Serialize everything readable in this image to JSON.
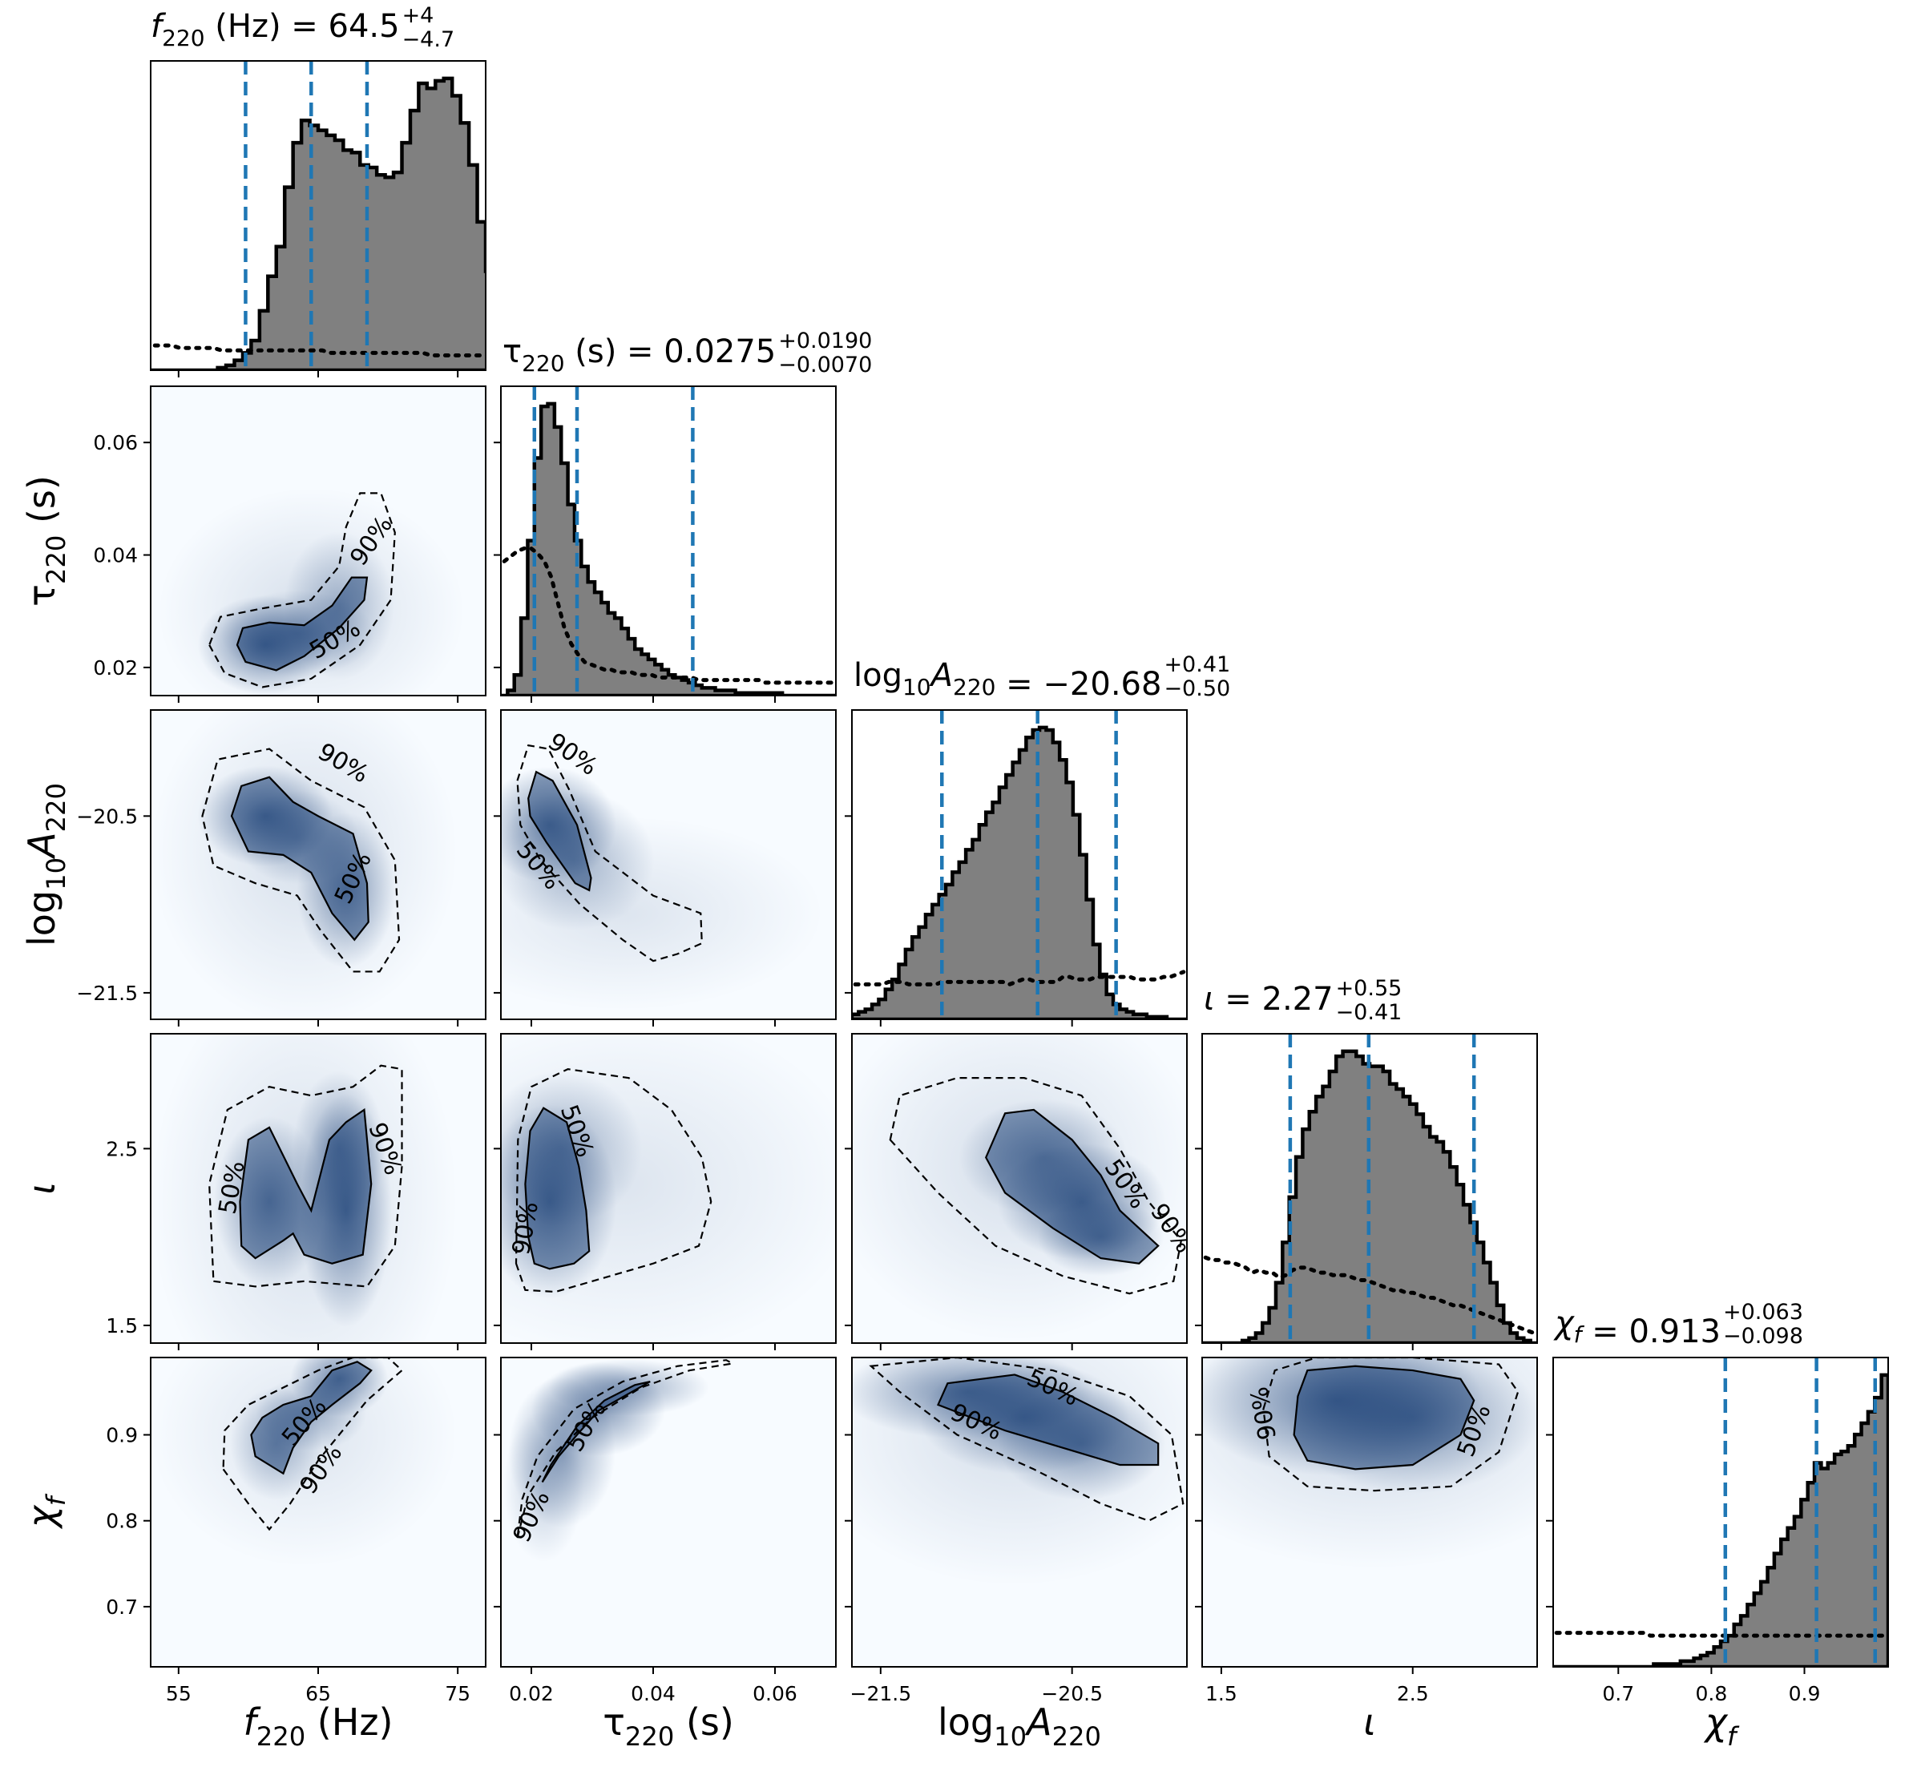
{
  "chart_data": {
    "type": "corner",
    "parameters": [
      {
        "key": "f",
        "title": "f220 (Hz) = 64.5 +4 −4.7",
        "median": 64.5,
        "plus": "+4",
        "minus": "−4.7",
        "quantiles": [
          59.8,
          64.5,
          68.5
        ],
        "range": [
          53,
          77
        ],
        "ticks": [
          55,
          65,
          75
        ],
        "tick_labels": [
          "55",
          "65",
          "75"
        ],
        "xlabel": "f220 (Hz)"
      },
      {
        "key": "tau",
        "title": "τ220 (s) = 0.0275 +0.0190 −0.0070",
        "median": 0.0275,
        "plus": "+0.0190",
        "minus": "−0.0070",
        "quantiles": [
          0.0205,
          0.0275,
          0.0465
        ],
        "range": [
          0.015,
          0.07
        ],
        "ticks": [
          0.02,
          0.04,
          0.06
        ],
        "tick_labels": [
          "0.02",
          "0.04",
          "0.06"
        ],
        "xlabel": "τ220 (s)",
        "ylabel": "τ220 (s)"
      },
      {
        "key": "logA",
        "title": "log10A220 = −20.68 +0.41 −0.50",
        "median": -20.68,
        "plus": "+0.41",
        "minus": "−0.50",
        "quantiles": [
          -21.18,
          -20.68,
          -20.27
        ],
        "range": [
          -21.65,
          -19.9
        ],
        "ticks": [
          -21.5,
          -20.5
        ],
        "tick_labels": [
          "−21.5",
          "−20.5"
        ],
        "xlabel": "log10A220",
        "ylabel": "log10A220"
      },
      {
        "key": "iota",
        "title": "ι = 2.27 +0.55 −0.41",
        "median": 2.27,
        "plus": "+0.55",
        "minus": "−0.41",
        "quantiles": [
          1.86,
          2.27,
          2.82
        ],
        "range": [
          1.4,
          3.15
        ],
        "ticks": [
          1.5,
          2.5
        ],
        "tick_labels": [
          "1.5",
          "2.5"
        ],
        "xlabel": "ι",
        "ylabel": "ι"
      },
      {
        "key": "chi",
        "title": "χf = 0.913 +0.063 −0.098",
        "median": 0.913,
        "plus": "+0.063",
        "minus": "−0.098",
        "quantiles": [
          0.815,
          0.913,
          0.976
        ],
        "range": [
          0.63,
          0.99
        ],
        "ticks": [
          0.7,
          0.8,
          0.9
        ],
        "tick_labels": [
          "0.7",
          "0.8",
          "0.9"
        ],
        "xlabel": "χf",
        "ylabel": "χf"
      }
    ],
    "histograms": [
      {
        "key": "f",
        "bins_start": 53,
        "bin_width": 0.6,
        "counts": [
          0,
          0,
          0,
          0,
          0,
          0,
          0,
          0,
          1,
          2,
          4,
          7,
          12,
          24,
          38,
          50,
          74,
          92,
          101,
          99,
          97,
          95,
          93,
          89,
          88,
          83,
          82,
          79,
          78,
          80,
          92,
          105,
          116,
          114,
          117,
          118,
          111,
          100,
          83,
          60,
          40,
          22,
          12,
          8,
          5,
          3,
          2,
          1,
          1,
          0
        ],
        "prior": [
          10,
          10,
          10,
          9,
          9,
          9,
          9,
          9,
          8,
          8,
          8,
          8,
          8,
          8,
          8,
          8,
          8,
          8,
          8,
          8,
          8,
          7,
          7,
          7,
          7,
          7,
          7,
          7,
          7,
          7,
          7,
          7,
          7,
          6,
          6,
          6,
          6,
          6,
          6,
          6,
          6,
          6,
          6,
          5,
          5,
          5,
          5,
          5,
          5,
          5
        ]
      },
      {
        "key": "tau",
        "bins_start": 0.015,
        "bin_width": 0.0011,
        "counts": [
          0,
          2,
          8,
          30,
          60,
          92,
          112,
          113,
          104,
          90,
          74,
          60,
          50,
          44,
          40,
          36,
          32,
          30,
          26,
          22,
          18,
          16,
          14,
          12,
          10,
          8,
          7,
          6,
          5,
          4,
          3,
          3,
          2,
          2,
          2,
          1,
          1,
          1,
          1,
          1,
          1,
          1,
          0,
          0,
          0,
          0,
          0,
          0,
          0,
          0
        ],
        "prior": [
          52,
          54,
          56,
          57,
          57,
          55,
          52,
          46,
          36,
          26,
          20,
          16,
          13,
          12,
          11,
          10,
          10,
          9,
          9,
          9,
          8,
          8,
          8,
          7,
          7,
          7,
          7,
          7,
          7,
          6,
          6,
          6,
          6,
          6,
          6,
          6,
          6,
          6,
          6,
          5,
          5,
          5,
          5,
          5,
          5,
          5,
          5,
          5,
          5,
          5
        ]
      },
      {
        "key": "logA",
        "bins_start": -21.65,
        "bin_width": 0.035,
        "counts": [
          2,
          3,
          4,
          6,
          8,
          12,
          16,
          22,
          28,
          33,
          37,
          42,
          46,
          50,
          54,
          59,
          63,
          68,
          72,
          78,
          83,
          87,
          93,
          98,
          103,
          108,
          113,
          116,
          117,
          116,
          111,
          104,
          95,
          82,
          66,
          48,
          30,
          18,
          10,
          6,
          4,
          3,
          2,
          2,
          1,
          1,
          1,
          0,
          0,
          0
        ],
        "prior": [
          14,
          14,
          14,
          14,
          14,
          15,
          15,
          15,
          14,
          14,
          14,
          14,
          14,
          15,
          15,
          15,
          15,
          15,
          15,
          15,
          15,
          15,
          15,
          14,
          15,
          16,
          16,
          15,
          15,
          15,
          15,
          17,
          17,
          16,
          16,
          16,
          17,
          17,
          17,
          17,
          17,
          17,
          16,
          16,
          16,
          16,
          17,
          17,
          18,
          19
        ]
      },
      {
        "key": "iota",
        "bins_start": 1.4,
        "bin_width": 0.035,
        "counts": [
          0,
          0,
          0,
          0,
          0,
          0,
          1,
          2,
          4,
          8,
          14,
          24,
          40,
          58,
          74,
          85,
          92,
          98,
          102,
          108,
          114,
          116,
          116,
          114,
          111,
          110,
          110,
          108,
          103,
          101,
          98,
          95,
          91,
          86,
          82,
          80,
          76,
          70,
          63,
          55,
          48,
          40,
          32,
          24,
          15,
          8,
          4,
          2,
          1,
          0
        ],
        "prior": [
          34,
          33,
          33,
          32,
          32,
          31,
          30,
          28,
          29,
          28,
          28,
          26,
          27,
          29,
          30,
          30,
          29,
          28,
          28,
          27,
          27,
          27,
          26,
          25,
          25,
          24,
          23,
          22,
          21,
          21,
          20,
          20,
          19,
          18,
          18,
          17,
          16,
          15,
          15,
          14,
          13,
          12,
          11,
          10,
          9,
          8,
          7,
          6,
          5,
          4
        ]
      },
      {
        "key": "chi",
        "bins_start": 0.63,
        "bin_width": 0.0072,
        "counts": [
          0,
          0,
          0,
          0,
          0,
          0,
          0,
          0,
          0,
          0,
          0,
          0,
          0,
          0,
          0,
          1,
          1,
          1,
          1,
          2,
          2,
          3,
          4,
          5,
          7,
          9,
          11,
          15,
          18,
          22,
          26,
          30,
          35,
          40,
          45,
          49,
          53,
          59,
          65,
          72,
          70,
          72,
          75,
          76,
          78,
          82,
          86,
          90,
          95,
          103
        ],
        "prior": [
          12,
          12,
          12,
          12,
          12,
          12,
          12,
          12,
          12,
          12,
          12,
          12,
          12,
          12,
          11,
          11,
          11,
          11,
          11,
          11,
          11,
          11,
          11,
          11,
          11,
          11,
          11,
          11,
          11,
          11,
          11,
          11,
          11,
          11,
          11,
          11,
          11,
          11,
          11,
          11,
          11,
          11,
          11,
          11,
          11,
          11,
          11,
          11,
          11,
          11
        ]
      }
    ],
    "contour_labels": [
      "50%",
      "90%"
    ],
    "colors": {
      "hist_fill": "#808080",
      "hist_edge": "#000000",
      "quantile_line": "#1f77b4",
      "density": "#08306b",
      "density_bg": "#f7fbff",
      "contour": "#000000"
    }
  }
}
